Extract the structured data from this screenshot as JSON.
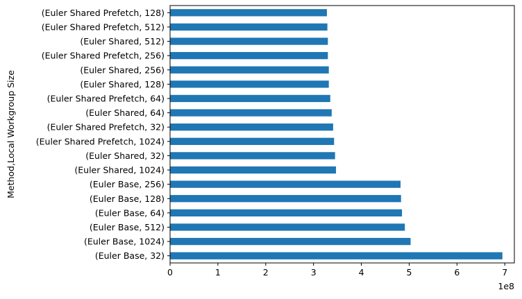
{
  "chart_data": {
    "type": "bar",
    "orientation": "horizontal",
    "categories": [
      "(Euler Base, 32)",
      "(Euler Base, 1024)",
      "(Euler Base, 512)",
      "(Euler Base, 64)",
      "(Euler Base, 128)",
      "(Euler Base, 256)",
      "(Euler Shared, 1024)",
      "(Euler Shared, 32)",
      "(Euler Shared Prefetch, 1024)",
      "(Euler Shared Prefetch, 32)",
      "(Euler Shared, 64)",
      "(Euler Shared Prefetch, 64)",
      "(Euler Shared, 128)",
      "(Euler Shared, 256)",
      "(Euler Shared Prefetch, 256)",
      "(Euler Shared, 512)",
      "(Euler Shared Prefetch, 512)",
      "(Euler Shared Prefetch, 128)"
    ],
    "values": [
      695000000,
      503000000,
      491000000,
      485000000,
      483000000,
      482000000,
      347000000,
      345000000,
      343000000,
      341000000,
      338000000,
      335000000,
      332000000,
      332000000,
      330000000,
      330000000,
      329000000,
      328000000
    ],
    "xlim": [
      0,
      720000000
    ],
    "xticks": [
      0,
      100000000,
      200000000,
      300000000,
      400000000,
      500000000,
      600000000,
      700000000
    ],
    "xtick_labels": [
      "0",
      "1",
      "2",
      "3",
      "4",
      "5",
      "6",
      "7"
    ],
    "x_offset_label": "1e8",
    "ylabel": "Method,Local Workgroup Size",
    "bar_color": "#1f77b4",
    "grid": false
  }
}
